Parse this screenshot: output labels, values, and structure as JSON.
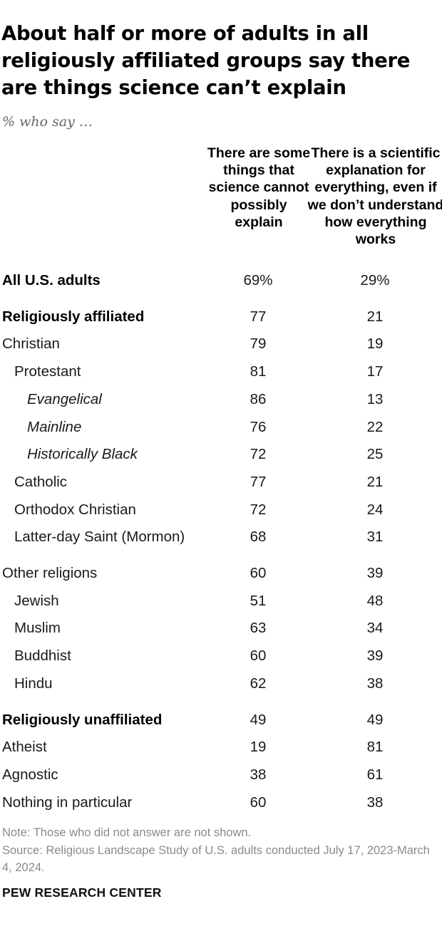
{
  "chart_data": {
    "type": "table",
    "title": "About half or more of adults in all religiously affiliated groups say there are things science can’t explain",
    "subtitle": "% who say …",
    "columns": [
      "There are some things that science cannot possibly explain",
      "There is a scientific explanation for everything, even if we don’t understand how everything works"
    ],
    "rows": [
      {
        "label": "All U.S. adults",
        "v1": "69%",
        "v2": "29%",
        "level": 0,
        "bold": true
      },
      {
        "label": "Religiously affiliated",
        "v1": "77",
        "v2": "21",
        "level": 0,
        "bold": true
      },
      {
        "label": "Christian",
        "v1": "79",
        "v2": "19",
        "level": 0,
        "bold": false
      },
      {
        "label": "Protestant",
        "v1": "81",
        "v2": "17",
        "level": 1,
        "bold": false
      },
      {
        "label": "Evangelical",
        "v1": "86",
        "v2": "13",
        "level": 2,
        "bold": false
      },
      {
        "label": "Mainline",
        "v1": "76",
        "v2": "22",
        "level": 2,
        "bold": false
      },
      {
        "label": "Historically Black",
        "v1": "72",
        "v2": "25",
        "level": 2,
        "bold": false
      },
      {
        "label": "Catholic",
        "v1": "77",
        "v2": "21",
        "level": 1,
        "bold": false
      },
      {
        "label": "Orthodox Christian",
        "v1": "72",
        "v2": "24",
        "level": 1,
        "bold": false
      },
      {
        "label": "Latter-day Saint (Mormon)",
        "v1": "68",
        "v2": "31",
        "level": 1,
        "bold": false
      },
      {
        "label": "Other religions",
        "v1": "60",
        "v2": "39",
        "level": 0,
        "bold": false
      },
      {
        "label": "Jewish",
        "v1": "51",
        "v2": "48",
        "level": 1,
        "bold": false
      },
      {
        "label": "Muslim",
        "v1": "63",
        "v2": "34",
        "level": 1,
        "bold": false
      },
      {
        "label": "Buddhist",
        "v1": "60",
        "v2": "39",
        "level": 1,
        "bold": false
      },
      {
        "label": "Hindu",
        "v1": "62",
        "v2": "38",
        "level": 1,
        "bold": false
      },
      {
        "label": "Religiously unaffiliated",
        "v1": "49",
        "v2": "49",
        "level": 0,
        "bold": true
      },
      {
        "label": "Atheist",
        "v1": "19",
        "v2": "81",
        "level": 0,
        "bold": false
      },
      {
        "label": "Agnostic",
        "v1": "38",
        "v2": "61",
        "level": 0,
        "bold": false
      },
      {
        "label": "Nothing in particular",
        "v1": "60",
        "v2": "38",
        "level": 0,
        "bold": false
      }
    ]
  },
  "footer": {
    "note": "Note: Those who did not answer are not shown.",
    "source": "Source: Religious Landscape Study of U.S. adults conducted July 17, 2023-March 4, 2024.",
    "brand": "PEW RESEARCH CENTER"
  }
}
